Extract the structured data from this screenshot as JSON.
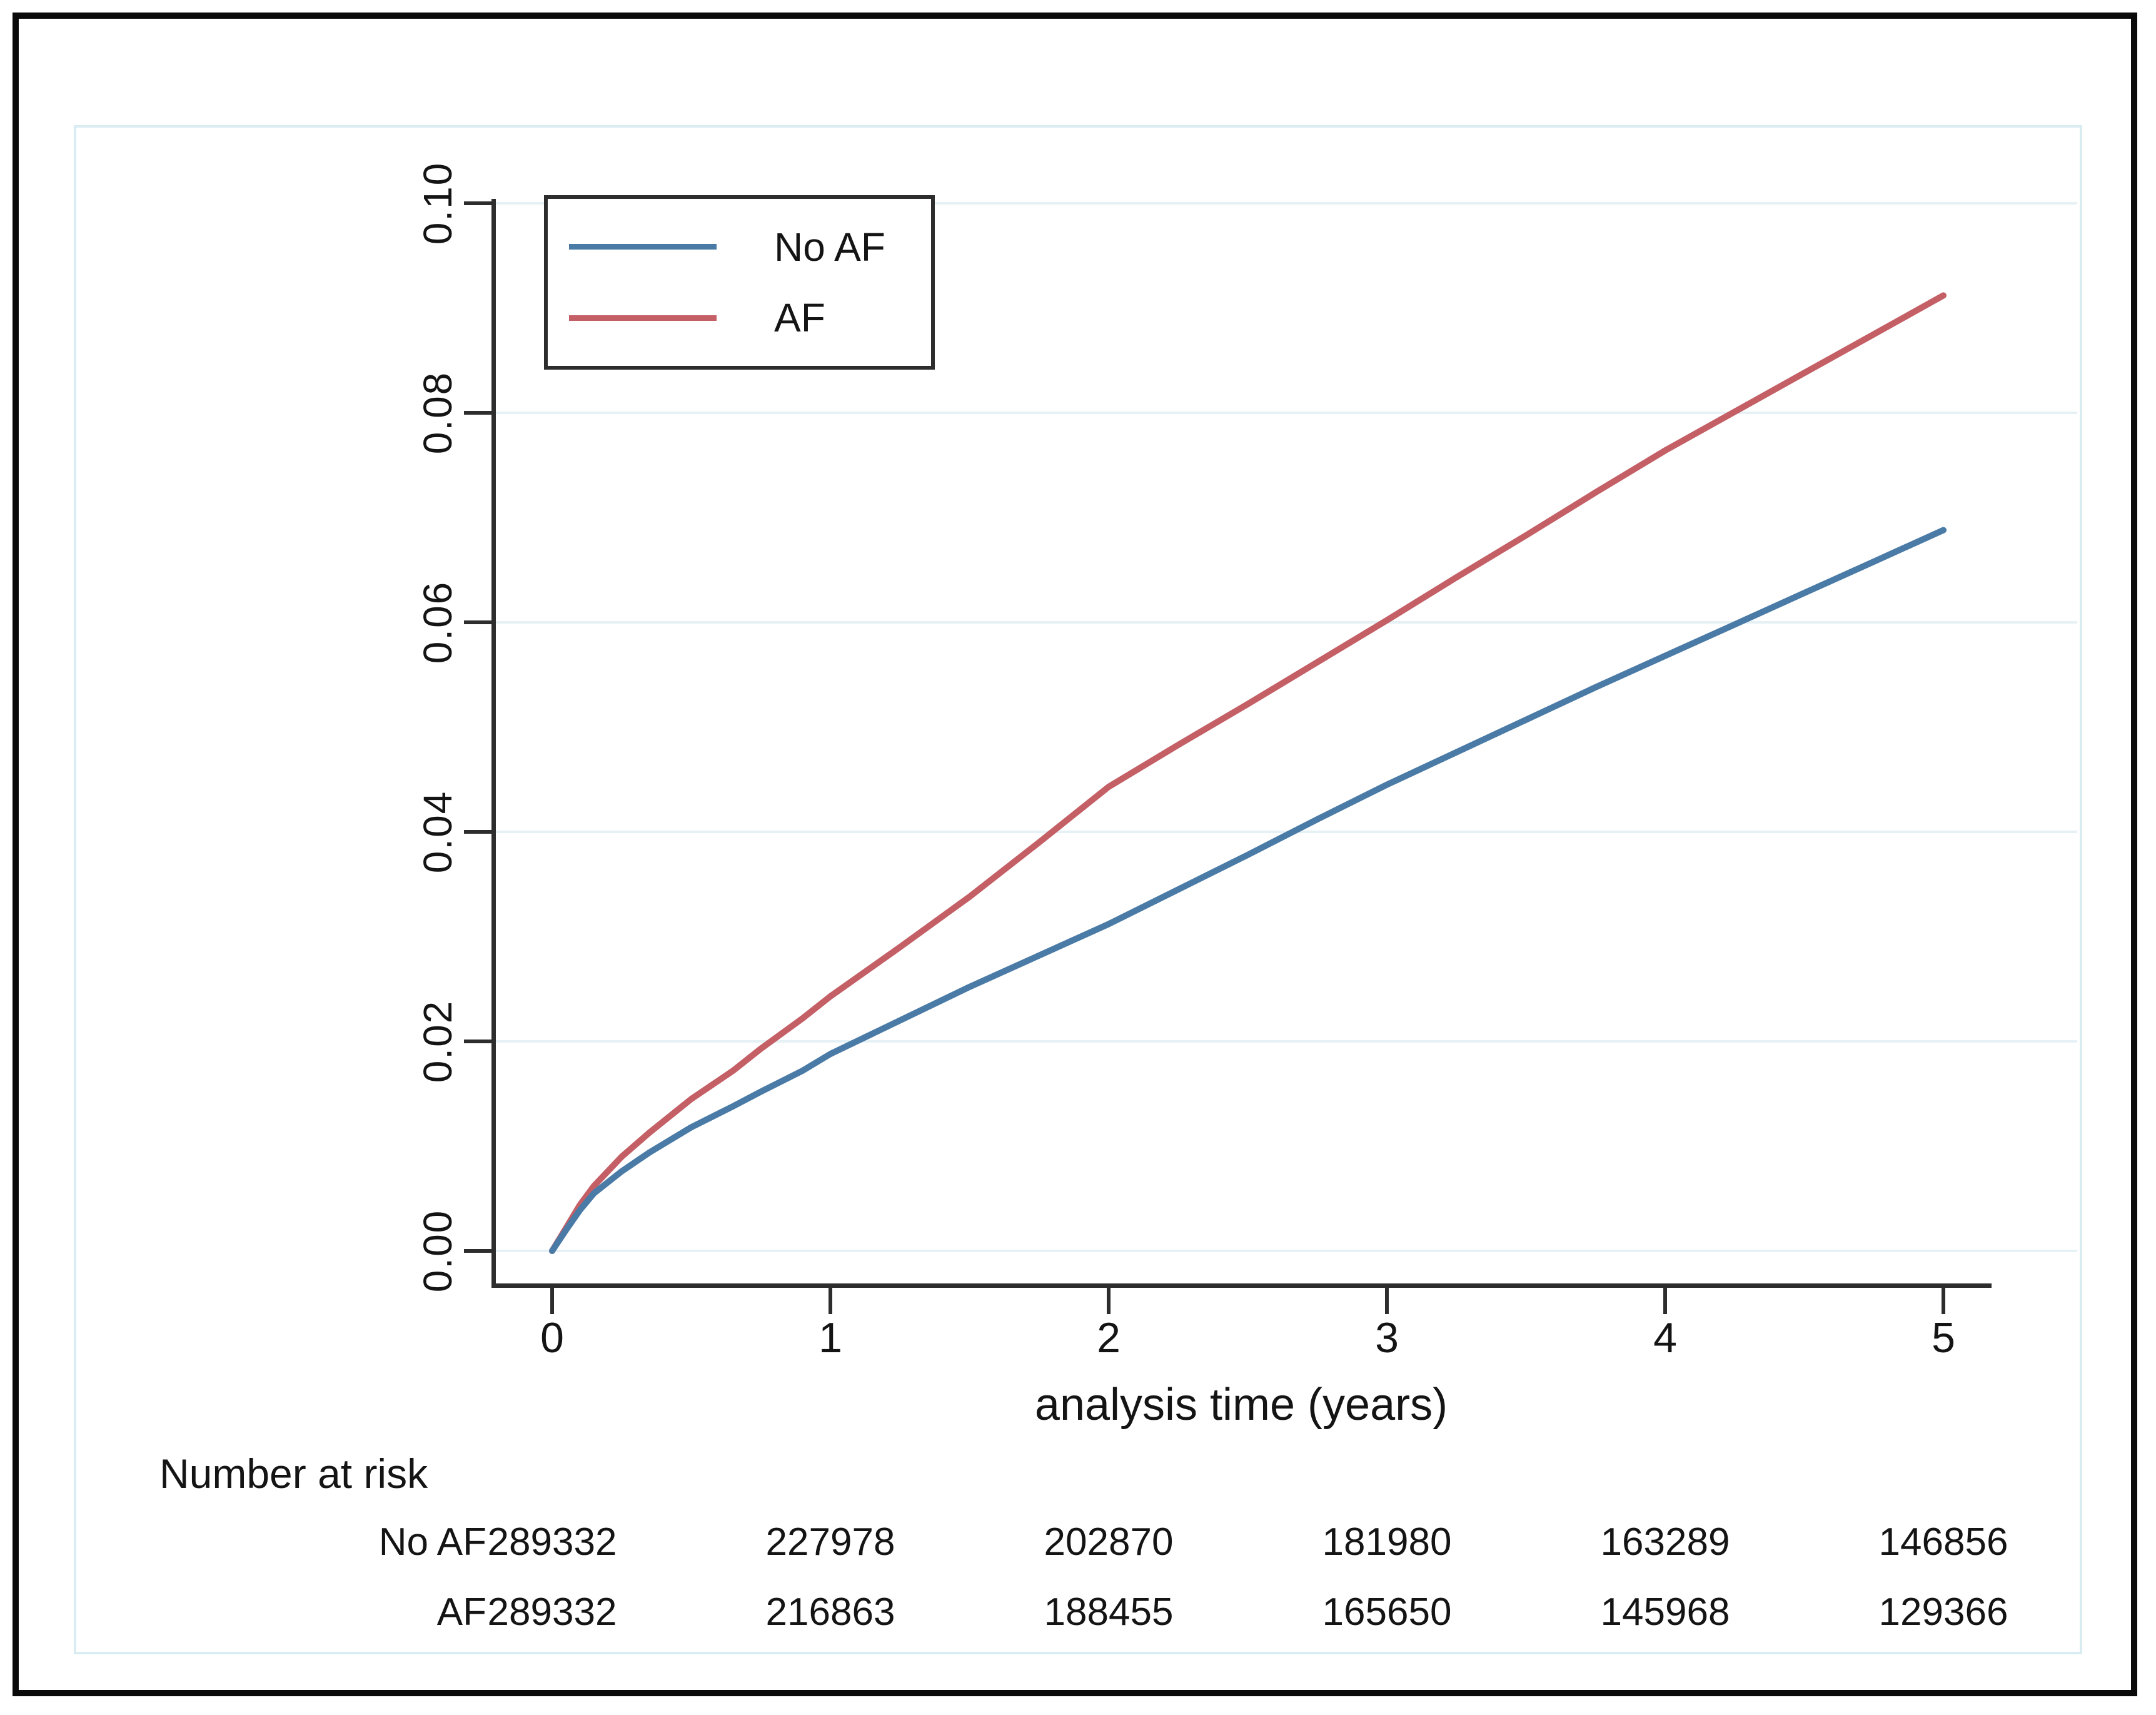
{
  "figure": {
    "legend": {
      "items": [
        {
          "label": "No AF",
          "color": "#4a7ba6"
        },
        {
          "label": "AF",
          "color": "#c45f66"
        }
      ]
    },
    "x_axis": {
      "title": "analysis time (years)",
      "tick_labels": [
        "0",
        "1",
        "2",
        "3",
        "4",
        "5"
      ]
    },
    "y_axis": {
      "tick_labels": [
        "0.00",
        "0.02",
        "0.04",
        "0.06",
        "0.08",
        "0.10"
      ]
    },
    "risk_table": {
      "title": "Number at risk",
      "rows": [
        {
          "label": "No AF",
          "values": [
            "289332",
            "227978",
            "202870",
            "181980",
            "163289",
            "146856"
          ]
        },
        {
          "label": "AF",
          "values": [
            "289332",
            "216863",
            "188455",
            "165650",
            "145968",
            "129366"
          ]
        }
      ]
    },
    "colors": {
      "no_af_line": "#4a7ba6",
      "af_line": "#c45f66",
      "gridline": "#e5f1f4",
      "axis": "#2d2d2d",
      "graph_region_border": "#d9ecf1"
    }
  },
  "chart_data": {
    "type": "line",
    "title": "",
    "xlabel": "analysis time (years)",
    "ylabel": "",
    "xlim": [
      0,
      5.35
    ],
    "ylim": [
      -0.003,
      0.103
    ],
    "x_ticks": [
      0,
      1,
      2,
      3,
      4,
      5
    ],
    "y_ticks": [
      0.0,
      0.02,
      0.04,
      0.06,
      0.08,
      0.1
    ],
    "grid": "horizontal-only",
    "legend_position": "top-left-inside",
    "series": [
      {
        "name": "No AF",
        "color": "#4a7ba6",
        "x": [
          0,
          0.05,
          0.1,
          0.15,
          0.25,
          0.35,
          0.5,
          0.65,
          0.75,
          0.9,
          1,
          1.25,
          1.5,
          1.75,
          2,
          2.25,
          2.5,
          2.75,
          3,
          3.25,
          3.5,
          3.75,
          4,
          4.25,
          4.5,
          4.75,
          5
        ],
        "y": [
          0,
          0.002,
          0.0039,
          0.0055,
          0.0076,
          0.0094,
          0.0118,
          0.0138,
          0.0152,
          0.0172,
          0.0188,
          0.022,
          0.0252,
          0.0282,
          0.0312,
          0.0345,
          0.0378,
          0.0412,
          0.0445,
          0.0476,
          0.0507,
          0.0538,
          0.0568,
          0.0598,
          0.0628,
          0.0658,
          0.0688
        ]
      },
      {
        "name": "AF",
        "color": "#c45f66",
        "x": [
          0,
          0.05,
          0.1,
          0.15,
          0.25,
          0.35,
          0.5,
          0.65,
          0.75,
          0.9,
          1,
          1.25,
          1.5,
          1.75,
          2,
          2.25,
          2.5,
          2.75,
          3,
          3.25,
          3.5,
          3.75,
          4,
          4.25,
          4.5,
          4.75,
          5
        ],
        "y": [
          0,
          0.0022,
          0.0044,
          0.0062,
          0.009,
          0.0113,
          0.0145,
          0.0172,
          0.0193,
          0.0222,
          0.0243,
          0.029,
          0.0338,
          0.039,
          0.0443,
          0.0483,
          0.0522,
          0.0562,
          0.0602,
          0.0643,
          0.0683,
          0.0724,
          0.0764,
          0.0801,
          0.0838,
          0.0875,
          0.0912
        ]
      }
    ],
    "number_at_risk": {
      "times": [
        0,
        1,
        2,
        3,
        4,
        5
      ],
      "No AF": [
        289332,
        227978,
        202870,
        181980,
        163289,
        146856
      ],
      "AF": [
        289332,
        216863,
        188455,
        165650,
        145968,
        129366
      ]
    }
  }
}
